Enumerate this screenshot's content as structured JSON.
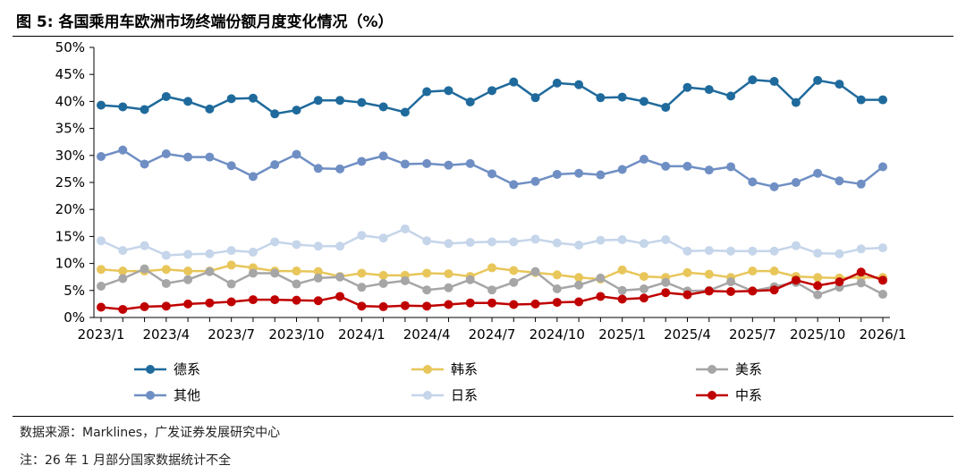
{
  "figure": {
    "title": "图 5:  各国乘用车欧洲市场终端份额月度变化情况（%）",
    "source": "数据来源：Marklines，广发证券发展研究中心",
    "note": "注：26 年 1 月部分国家数据统计不全"
  },
  "chart_data": {
    "type": "line",
    "title": "各国乘用车欧洲市场终端份额月度变化情况（%）",
    "xlabel": "",
    "ylabel": "",
    "ylim": [
      0,
      50
    ],
    "y_tick_values": [
      0,
      5,
      10,
      15,
      20,
      25,
      30,
      35,
      40,
      45,
      50
    ],
    "y_tick_labels": [
      "0%",
      "5%",
      "10%",
      "15%",
      "20%",
      "25%",
      "30%",
      "35%",
      "40%",
      "45%",
      "50%"
    ],
    "x": [
      "2023/1",
      "2023/2",
      "2023/3",
      "2023/4",
      "2023/5",
      "2023/6",
      "2023/7",
      "2023/8",
      "2023/9",
      "2023/10",
      "2023/11",
      "2023/12",
      "2024/1",
      "2024/2",
      "2024/3",
      "2024/4",
      "2024/5",
      "2024/6",
      "2024/7",
      "2024/8",
      "2024/9",
      "2024/10",
      "2024/11",
      "2024/12",
      "2025/1",
      "2025/2",
      "2025/3",
      "2025/4",
      "2025/5",
      "2025/6",
      "2025/7",
      "2025/8",
      "2025/9",
      "2025/10",
      "2025/11",
      "2025/12",
      "2026/1"
    ],
    "x_tick_labels": [
      "2023/1",
      "2023/4",
      "2023/7",
      "2023/10",
      "2024/1",
      "2024/4",
      "2024/7",
      "2024/10",
      "2025/1",
      "2025/4",
      "2025/7",
      "2025/10",
      "2026/1"
    ],
    "legend_position": "bottom",
    "grid": false,
    "series": [
      {
        "name": "德系",
        "color": "#1f6a9c",
        "values": [
          39.3,
          39.0,
          38.5,
          40.9,
          40.0,
          38.6,
          40.5,
          40.6,
          37.7,
          38.4,
          40.2,
          40.2,
          39.8,
          39.0,
          38.0,
          41.8,
          42.0,
          39.9,
          42.0,
          43.6,
          40.7,
          43.4,
          43.1,
          40.7,
          40.8,
          40.0,
          38.9,
          42.6,
          42.2,
          41.0,
          44.0,
          43.7,
          39.8,
          43.9,
          43.2,
          40.3,
          40.3
        ]
      },
      {
        "name": "韩系",
        "color": "#e8c65a",
        "values": [
          8.9,
          8.6,
          8.6,
          8.9,
          8.6,
          8.6,
          9.7,
          9.2,
          8.6,
          8.6,
          8.5,
          7.6,
          8.2,
          7.8,
          7.8,
          8.2,
          8.1,
          7.6,
          9.2,
          8.7,
          8.3,
          7.9,
          7.4,
          7.1,
          8.8,
          7.6,
          7.4,
          8.3,
          8.0,
          7.4,
          8.6,
          8.6,
          7.6,
          7.4,
          7.3,
          7.4,
          7.4
        ]
      },
      {
        "name": "美系",
        "color": "#a6a6a6",
        "values": [
          5.8,
          7.2,
          9.0,
          6.3,
          7.0,
          8.5,
          6.2,
          8.2,
          8.2,
          6.2,
          7.3,
          7.5,
          5.6,
          6.3,
          6.8,
          5.1,
          5.5,
          7.0,
          5.1,
          6.5,
          8.5,
          5.3,
          6.0,
          7.3,
          5.0,
          5.3,
          6.5,
          4.9,
          5.0,
          6.6,
          4.9,
          5.7,
          6.5,
          4.2,
          5.6,
          6.4,
          4.3
        ]
      },
      {
        "name": "其他",
        "color": "#6f8fc4",
        "values": [
          29.8,
          31.0,
          28.4,
          30.3,
          29.7,
          29.7,
          28.1,
          26.1,
          28.3,
          30.2,
          27.6,
          27.5,
          28.9,
          29.9,
          28.4,
          28.5,
          28.2,
          28.5,
          26.6,
          24.6,
          25.2,
          26.5,
          26.7,
          26.4,
          27.4,
          29.3,
          28.0,
          28.0,
          27.3,
          27.9,
          25.1,
          24.2,
          25.0,
          26.7,
          25.3,
          24.7,
          27.9
        ]
      },
      {
        "name": "日系",
        "color": "#c5d5ea",
        "values": [
          14.2,
          12.4,
          13.3,
          11.5,
          11.7,
          11.8,
          12.4,
          12.1,
          14.0,
          13.5,
          13.2,
          13.2,
          15.2,
          14.7,
          16.4,
          14.2,
          13.7,
          13.9,
          14.0,
          14.0,
          14.5,
          13.8,
          13.4,
          14.3,
          14.4,
          13.7,
          14.4,
          12.3,
          12.4,
          12.3,
          12.3,
          12.3,
          13.3,
          11.9,
          11.8,
          12.7,
          12.9
        ]
      },
      {
        "name": "中系",
        "color": "#c00000",
        "values": [
          1.9,
          1.5,
          2.0,
          2.1,
          2.5,
          2.7,
          2.9,
          3.3,
          3.3,
          3.2,
          3.1,
          3.9,
          2.1,
          2.0,
          2.2,
          2.1,
          2.4,
          2.7,
          2.7,
          2.4,
          2.5,
          2.8,
          2.9,
          3.9,
          3.4,
          3.6,
          4.6,
          4.2,
          4.9,
          4.8,
          4.9,
          5.1,
          6.9,
          5.9,
          6.6,
          8.4,
          6.9
        ]
      }
    ]
  }
}
